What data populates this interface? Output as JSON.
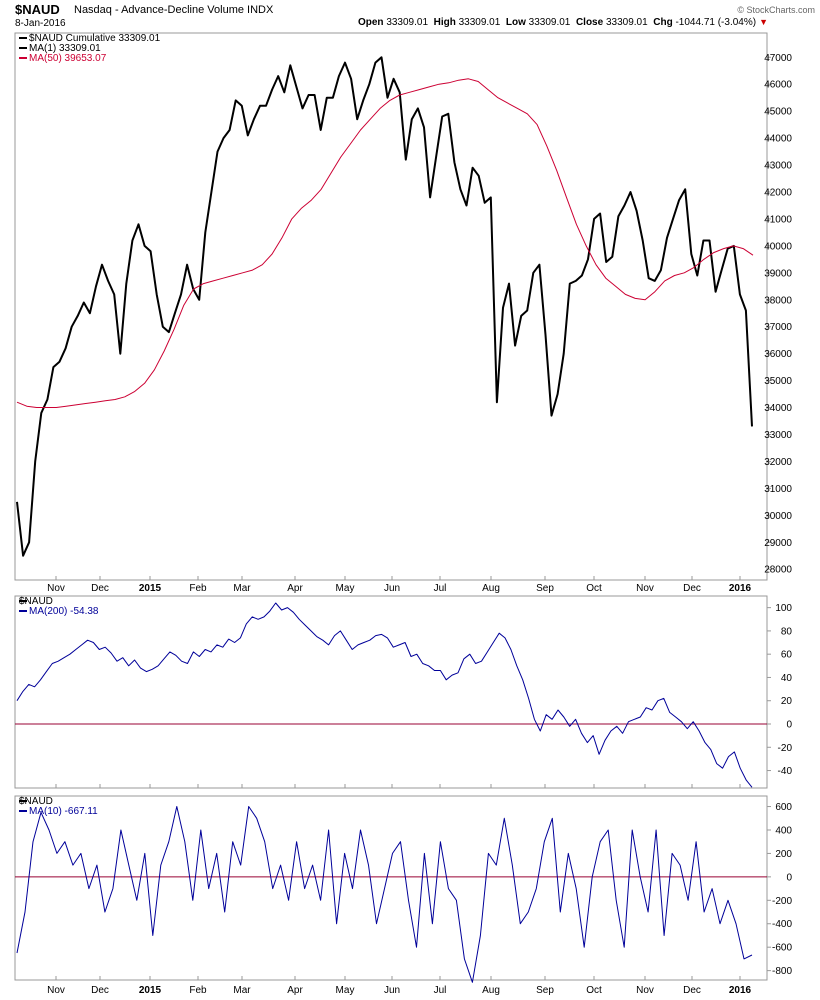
{
  "header": {
    "symbol": "$NAUD",
    "description": "Nasdaq - Advance-Decline Volume INDX",
    "date": "8-Jan-2016",
    "open_label": "Open",
    "open": "33309.01",
    "high_label": "High",
    "high": "33309.01",
    "low_label": "Low",
    "low": "33309.01",
    "close_label": "Close",
    "close": "33309.01",
    "chg_label": "Chg",
    "chg": "-1044.71 (-3.04%)",
    "brand": "© StockCharts.com"
  },
  "colors": {
    "price": "#000000",
    "ma50": "#cc0033",
    "osc": "#000099",
    "zero": "#990033"
  },
  "x_axis": {
    "labels": [
      "Nov",
      "Dec",
      "2015",
      "Feb",
      "Mar",
      "Apr",
      "May",
      "Jun",
      "Jul",
      "Aug",
      "Sep",
      "Oct",
      "Nov",
      "Dec",
      "2016"
    ],
    "bold": [
      "2015",
      "2016"
    ]
  },
  "chart_data": [
    {
      "type": "line",
      "title": "$NAUD Nasdaq - Advance-Decline Volume INDX",
      "legend": [
        {
          "text": "$NAUD Cumulative 33309.01",
          "color": "#000000"
        },
        {
          "text": "MA(1) 33309.01",
          "color": "#000000"
        },
        {
          "text": "MA(50) 39653.07",
          "color": "#cc0033"
        }
      ],
      "ylim": [
        27600,
        47900
      ],
      "yticks": [
        28000,
        29000,
        30000,
        31000,
        32000,
        33000,
        34000,
        35000,
        36000,
        37000,
        38000,
        39000,
        40000,
        41000,
        42000,
        43000,
        44000,
        45000,
        46000,
        47000
      ],
      "series": [
        {
          "name": "$NAUD Cumulative",
          "values": [
            30500,
            28500,
            29000,
            32000,
            33800,
            34300,
            35500,
            35700,
            36200,
            37000,
            37400,
            37900,
            37500,
            38500,
            39300,
            38700,
            38200,
            36000,
            38600,
            40200,
            40800,
            40000,
            39800,
            38200,
            37000,
            36800,
            37500,
            38200,
            39300,
            38400,
            38000,
            40500,
            42000,
            43500,
            44000,
            44300,
            45400,
            45200,
            44100,
            44700,
            45200,
            45200,
            45800,
            46300,
            45700,
            46700,
            45900,
            45100,
            45600,
            45600,
            44300,
            45500,
            45500,
            46300,
            46800,
            46200,
            44700,
            45400,
            46000,
            46800,
            47000,
            45500,
            46200,
            45700,
            43200,
            44700,
            45100,
            44400,
            41800,
            43300,
            44800,
            44900,
            43100,
            42100,
            41500,
            42900,
            42600,
            41600,
            41800,
            34200,
            37700,
            38600,
            36300,
            37400,
            37600,
            39000,
            39300,
            36700,
            33700,
            34500,
            36000,
            38600,
            38700,
            38900,
            39500,
            41000,
            41200,
            39400,
            39600,
            41100,
            41500,
            42000,
            41300,
            40200,
            38800,
            38700,
            39100,
            40300,
            41000,
            41700,
            42100,
            39700,
            38900,
            40200,
            40200,
            38300,
            39100,
            39900,
            40000,
            38200,
            37600,
            33300
          ]
        },
        {
          "name": "MA(50)",
          "values": [
            34200,
            34050,
            34000,
            34000,
            34000,
            34050,
            34100,
            34150,
            34200,
            34250,
            34300,
            34400,
            34600,
            34900,
            35400,
            36100,
            36900,
            37800,
            38400,
            38600,
            38700,
            38800,
            38900,
            39000,
            39100,
            39300,
            39700,
            40300,
            41000,
            41400,
            41700,
            42100,
            42700,
            43300,
            43800,
            44300,
            44700,
            45100,
            45400,
            45600,
            45700,
            45800,
            45900,
            46000,
            46050,
            46150,
            46200,
            46100,
            45800,
            45500,
            45300,
            45100,
            44900,
            44500,
            43700,
            42800,
            41800,
            40800,
            40000,
            39300,
            38800,
            38500,
            38200,
            38050,
            38000,
            38300,
            38700,
            38900,
            39000,
            39200,
            39500,
            39750,
            39900,
            40000,
            39900,
            39653.07
          ]
        }
      ]
    },
    {
      "type": "line",
      "legend": [
        {
          "text": "$NAUD",
          "color": "#000000"
        },
        {
          "text": "MA(200) -54.38",
          "color": "#000099"
        }
      ],
      "ylim": [
        -55,
        110
      ],
      "yticks": [
        -40,
        -20,
        0,
        20,
        40,
        60,
        80,
        100
      ],
      "reference_line": 0,
      "series": [
        {
          "name": "MA(200)",
          "values": [
            20,
            28,
            34,
            32,
            38,
            45,
            52,
            54,
            57,
            60,
            64,
            68,
            72,
            70,
            64,
            66,
            61,
            54,
            57,
            50,
            55,
            48,
            45,
            47,
            50,
            56,
            62,
            59,
            54,
            52,
            62,
            58,
            64,
            62,
            68,
            66,
            73,
            70,
            74,
            86,
            92,
            90,
            92,
            97,
            104,
            98,
            100,
            96,
            90,
            85,
            80,
            75,
            72,
            68,
            76,
            80,
            72,
            64,
            68,
            70,
            72,
            76,
            77,
            74,
            66,
            68,
            70,
            58,
            60,
            52,
            50,
            46,
            46,
            38,
            42,
            44,
            56,
            60,
            52,
            54,
            62,
            70,
            78,
            74,
            64,
            50,
            38,
            22,
            4,
            -6,
            8,
            4,
            12,
            6,
            -2,
            4,
            -8,
            -16,
            -10,
            -26,
            -14,
            -6,
            -2,
            -8,
            2,
            4,
            6,
            14,
            12,
            20,
            22,
            10,
            6,
            2,
            -4,
            2,
            -6,
            -16,
            -22,
            -34,
            -38,
            -28,
            -24,
            -38,
            -48,
            -54.38
          ]
        }
      ]
    },
    {
      "type": "line",
      "legend": [
        {
          "text": "$NAUD",
          "color": "#000000"
        },
        {
          "text": "MA(10) -667.11",
          "color": "#000099"
        }
      ],
      "ylim": [
        -880,
        690
      ],
      "yticks": [
        -800,
        -600,
        -400,
        -200,
        0,
        200,
        400,
        600
      ],
      "reference_line": 0,
      "series": [
        {
          "name": "MA(10)",
          "values": [
            -650,
            -300,
            300,
            550,
            400,
            200,
            300,
            100,
            200,
            -100,
            100,
            -300,
            -100,
            400,
            100,
            -200,
            200,
            -500,
            100,
            300,
            600,
            300,
            -200,
            400,
            -100,
            200,
            -300,
            300,
            100,
            600,
            500,
            300,
            -100,
            100,
            -200,
            300,
            -100,
            100,
            -200,
            400,
            -400,
            200,
            -100,
            400,
            100,
            -400,
            -100,
            200,
            300,
            -200,
            -600,
            200,
            -400,
            300,
            -100,
            -200,
            -700,
            -900,
            -500,
            200,
            100,
            500,
            100,
            -400,
            -300,
            -100,
            300,
            500,
            -300,
            200,
            -100,
            -600,
            0,
            300,
            400,
            -200,
            -600,
            400,
            0,
            -300,
            400,
            -500,
            200,
            100,
            -200,
            300,
            -300,
            -100,
            -400,
            -200,
            -400,
            -700,
            -667.11
          ]
        }
      ]
    }
  ]
}
